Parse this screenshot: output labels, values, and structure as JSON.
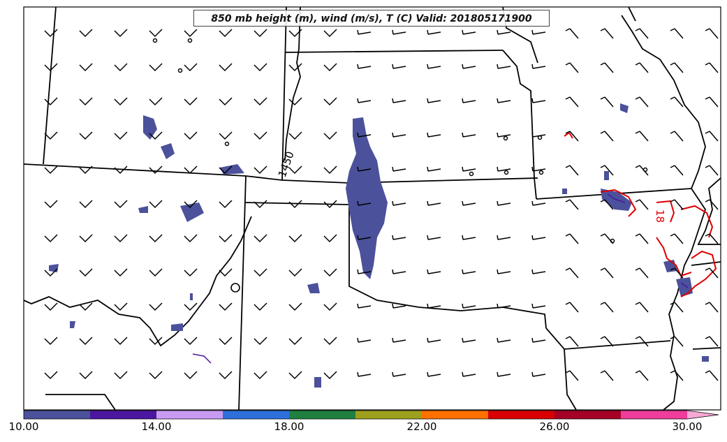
{
  "title": "850 mb height (m), wind (m/s), T (C) Valid: 201805171900",
  "height_contour_labels": [
    "1450"
  ],
  "temperature_contour_labels": [
    "18"
  ],
  "colorbar": {
    "colors": [
      "#4b519a",
      "#4b16a0",
      "#c99af2",
      "#2e6fdc",
      "#208040",
      "#9da01c",
      "#ff7000",
      "#d90000",
      "#a50025",
      "#f03c9b",
      "#f7a8d4"
    ],
    "tick_labels": [
      "10.00",
      "14.00",
      "18.00",
      "22.00",
      "26.00",
      "30.00"
    ]
  },
  "legend_colors": {
    "boundary": "#000000",
    "temp_contour": "#e00000",
    "fill": "#4b519a"
  }
}
